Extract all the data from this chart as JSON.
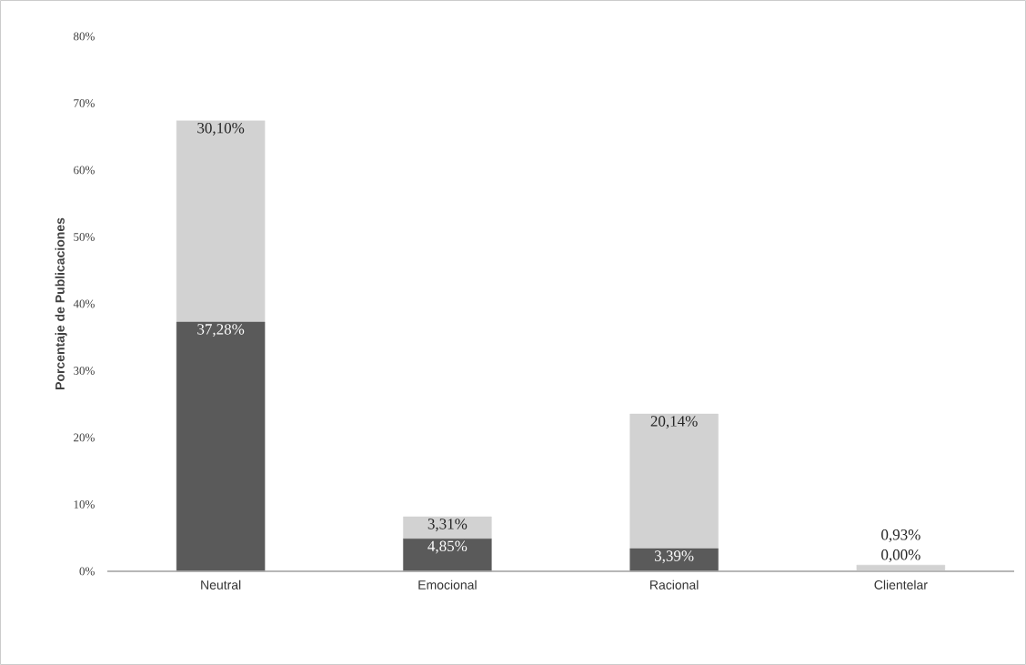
{
  "chart_data": {
    "type": "bar",
    "stacked": true,
    "ylabel": "Porcentaje de Publicaciones",
    "categories": [
      "Neutral",
      "Emocional",
      "Racional",
      "Clientelar"
    ],
    "series": [
      {
        "color": "#5a5a5a",
        "values": [
          37.28,
          4.85,
          3.39,
          0.0
        ],
        "value_labels": [
          "37,28%",
          "4,85%",
          "3,39%",
          "0,00%"
        ]
      },
      {
        "color": "#d2d2d2",
        "values": [
          30.1,
          3.31,
          20.14,
          0.93
        ],
        "value_labels": [
          "30,10%",
          "3,31%",
          "20,14%",
          "0,93%"
        ]
      }
    ],
    "ylim": [
      0,
      80
    ],
    "yticks": [
      {
        "value": 0,
        "label": "0%"
      },
      {
        "value": 10,
        "label": "10%"
      },
      {
        "value": 20,
        "label": "20%"
      },
      {
        "value": 30,
        "label": "30%"
      },
      {
        "value": 40,
        "label": "40%"
      },
      {
        "value": 50,
        "label": "50%"
      },
      {
        "value": 60,
        "label": "60%"
      },
      {
        "value": 70,
        "label": "70%"
      },
      {
        "value": 80,
        "label": "80%"
      }
    ]
  }
}
